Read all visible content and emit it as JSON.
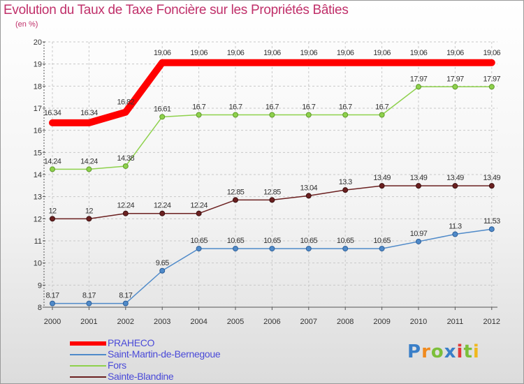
{
  "chart_data": {
    "type": "line",
    "title": "Evolution du Taux de Taxe Foncière sur les Propriétés Bâties",
    "ylabel": "(en %)",
    "xlabel": "",
    "ylim": [
      8,
      20
    ],
    "yticks": [
      "8",
      "9",
      "10",
      "11",
      "12",
      "13",
      "14",
      "15",
      "16",
      "17",
      "18",
      "19",
      "20"
    ],
    "categories": [
      "2000",
      "2001",
      "2002",
      "2003",
      "2004",
      "2005",
      "2006",
      "2007",
      "2008",
      "2009",
      "2010",
      "2011",
      "2012"
    ],
    "series": [
      {
        "name": "PRAHECO",
        "color": "#ff0000",
        "values": [
          16.34,
          16.34,
          16.82,
          19.06,
          19.06,
          19.06,
          19.06,
          19.06,
          19.06,
          19.06,
          19.06,
          19.06,
          19.06
        ],
        "labels": [
          "16.34",
          "16.34",
          "16.82",
          "19.06",
          "19.06",
          "19.06",
          "19.06",
          "19.06",
          "19.06",
          "19.06",
          "19.06",
          "19.06",
          "19.06"
        ]
      },
      {
        "name": "Saint-Martin-de-Bernegoue",
        "color": "#4f8ac9",
        "values": [
          8.17,
          8.17,
          8.17,
          9.65,
          10.65,
          10.65,
          10.65,
          10.65,
          10.65,
          10.65,
          10.97,
          11.3,
          11.53
        ],
        "labels": [
          "8.17",
          "8.17",
          "8.17",
          "9.65",
          "10.65",
          "10.65",
          "10.65",
          "10.65",
          "10.65",
          "10.65",
          "10.97",
          "11.3",
          "11.53"
        ]
      },
      {
        "name": "Fors",
        "color": "#8ed14c",
        "values": [
          14.24,
          14.24,
          14.38,
          16.61,
          16.7,
          16.7,
          16.7,
          16.7,
          16.7,
          16.7,
          17.97,
          17.97,
          17.97
        ],
        "labels": [
          "14.24",
          "14.24",
          "14.38",
          "16.61",
          "16.7",
          "16.7",
          "16.7",
          "16.7",
          "16.7",
          "16.7",
          "17.97",
          "17.97",
          "17.97"
        ]
      },
      {
        "name": "Sainte-Blandine",
        "color": "#6b2020",
        "values": [
          12,
          12,
          12.24,
          12.24,
          12.24,
          12.85,
          12.85,
          13.04,
          13.3,
          13.49,
          13.49,
          13.49,
          13.49
        ],
        "labels": [
          "12",
          "12",
          "12.24",
          "12.24",
          "12.24",
          "12.85",
          "12.85",
          "13.04",
          "13.3",
          "13.49",
          "13.49",
          "13.49",
          "13.49"
        ]
      }
    ],
    "legend": "bottom-left",
    "grid": true
  },
  "legend": {
    "items": [
      {
        "label": "PRAHECO",
        "color": "#ff0000"
      },
      {
        "label": "Saint-Martin-de-Bernegoue",
        "color": "#4f8ac9"
      },
      {
        "label": "Fors",
        "color": "#8ed14c"
      },
      {
        "label": "Sainte-Blandine",
        "color": "#6b2020"
      }
    ]
  },
  "logo": {
    "letters": [
      "P",
      "r",
      "o",
      "x",
      "i",
      "t",
      "i"
    ],
    "colors": [
      "#3a7fc8",
      "#f08a1e",
      "#7cbf3a",
      "#3a7fc8",
      "#e23a3a",
      "#7cbf3a",
      "#f0b81e"
    ]
  }
}
